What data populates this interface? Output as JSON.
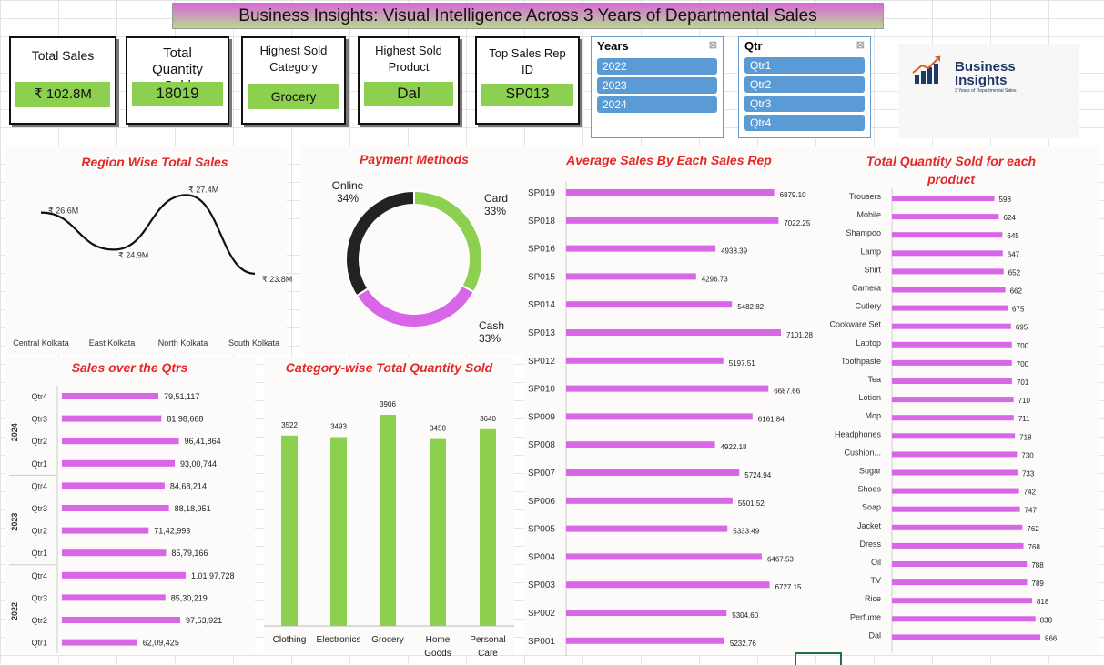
{
  "title": "Business Insights: Visual Intelligence Across 3 Years of Departmental Sales",
  "kpis": {
    "total_sales": {
      "label": "Total Sales",
      "value": "₹ 102.8M"
    },
    "total_qty": {
      "label": "Total Quantity Sold",
      "value": "18019"
    },
    "top_category": {
      "label": "Highest Sold Category",
      "value": "Grocery"
    },
    "top_product": {
      "label": "Highest Sold Product",
      "value": "Dal"
    },
    "top_rep": {
      "label": "Top Sales Rep ID",
      "value": "SP013"
    }
  },
  "slicers": {
    "years": {
      "title": "Years",
      "items": [
        "2022",
        "2023",
        "2024"
      ]
    },
    "qtr": {
      "title": "Qtr",
      "items": [
        "Qtr1",
        "Qtr2",
        "Qtr3",
        "Qtr4"
      ]
    }
  },
  "logo": {
    "line1": "Business",
    "line2": "Insights",
    "tagline": "3 Years of Departmental Sales"
  },
  "colors": {
    "bar_pink": "#d966e8",
    "bar_green": "#8dd04f",
    "title_red": "#e32828",
    "donut_dark": "#222222"
  },
  "chart_data": [
    {
      "id": "region",
      "type": "line",
      "title": "Region Wise Total Sales",
      "categories": [
        "Central Kolkata",
        "East Kolkata",
        "North Kolkata",
        "South Kolkata"
      ],
      "values": [
        26.6,
        24.9,
        27.4,
        23.8
      ],
      "labels": [
        "₹ 26.6M",
        "₹ 24.9M",
        "₹ 27.4M",
        "₹ 23.8M"
      ]
    },
    {
      "id": "payment",
      "type": "pie",
      "title": "Payment Methods",
      "categories": [
        "Card",
        "Cash",
        "Online"
      ],
      "values": [
        33,
        33,
        34
      ],
      "labels": [
        "Card 33%",
        "Cash 33%",
        "Online 34%"
      ]
    },
    {
      "id": "qtrs",
      "type": "bar",
      "title": "Sales over the Qtrs",
      "groups": [
        {
          "year": "2024",
          "items": [
            [
              "Qtr4",
              7951117,
              "79,51,117"
            ],
            [
              "Qtr3",
              8198668,
              "81,98,668"
            ],
            [
              "Qtr2",
              9641864,
              "96,41,864"
            ],
            [
              "Qtr1",
              9300744,
              "93,00,744"
            ]
          ]
        },
        {
          "year": "2023",
          "items": [
            [
              "Qtr4",
              8468214,
              "84,68,214"
            ],
            [
              "Qtr3",
              8818951,
              "88,18,951"
            ],
            [
              "Qtr2",
              7142993,
              "71,42,993"
            ],
            [
              "Qtr1",
              8579166,
              "85,79,166"
            ]
          ]
        },
        {
          "year": "2022",
          "items": [
            [
              "Qtr4",
              10197728,
              "1,01,97,728"
            ],
            [
              "Qtr3",
              8530219,
              "85,30,219"
            ],
            [
              "Qtr2",
              9753921,
              "97,53,921"
            ],
            [
              "Qtr1",
              6209425,
              "62,09,425"
            ]
          ]
        }
      ]
    },
    {
      "id": "category",
      "type": "bar",
      "title": "Category-wise Total Quantity Sold",
      "categories": [
        "Clothing",
        "Electronics",
        "Grocery",
        "Home Goods",
        "Personal Care"
      ],
      "values": [
        3522,
        3493,
        3906,
        3458,
        3640
      ]
    },
    {
      "id": "rep",
      "type": "bar",
      "title": "Average Sales By Each Sales Rep",
      "categories": [
        "SP019",
        "SP018",
        "SP016",
        "SP015",
        "SP014",
        "SP013",
        "SP012",
        "SP010",
        "SP009",
        "SP008",
        "SP007",
        "SP006",
        "SP005",
        "SP004",
        "SP003",
        "SP002",
        "SP001"
      ],
      "values": [
        6879.1,
        7022.25,
        4938.39,
        4296.73,
        5482.82,
        7101.28,
        5197.51,
        6687.66,
        6161.84,
        4922.18,
        5724.94,
        5501.52,
        5333.49,
        6467.53,
        6727.15,
        5304.6,
        5232.76
      ],
      "labels": [
        "6879.10",
        "7022.25",
        "4938.39",
        "4296.73",
        "5482.82",
        "7101.28",
        "5197.51",
        "6687.66",
        "6161.84",
        "4922.18",
        "5724.94",
        "5501.52",
        "5333.49",
        "6467.53",
        "6727.15",
        "5304.60",
        "5232.76"
      ]
    },
    {
      "id": "product",
      "type": "bar",
      "title": "Total Quantity Sold for each product",
      "categories": [
        "Trousers",
        "Mobile",
        "Shampoo",
        "Lamp",
        "Shirt",
        "Camera",
        "Cutlery",
        "Cookware Set",
        "Laptop",
        "Toothpaste",
        "Tea",
        "Lotion",
        "Mop",
        "Headphones",
        "Cushion...",
        "Sugar",
        "Shoes",
        "Soap",
        "Jacket",
        "Dress",
        "Oil",
        "TV",
        "Rice",
        "Perfume",
        "Dal"
      ],
      "values": [
        598,
        624,
        645,
        647,
        652,
        662,
        675,
        695,
        700,
        700,
        701,
        710,
        711,
        718,
        730,
        733,
        742,
        747,
        762,
        768,
        788,
        789,
        818,
        838,
        866
      ]
    }
  ]
}
